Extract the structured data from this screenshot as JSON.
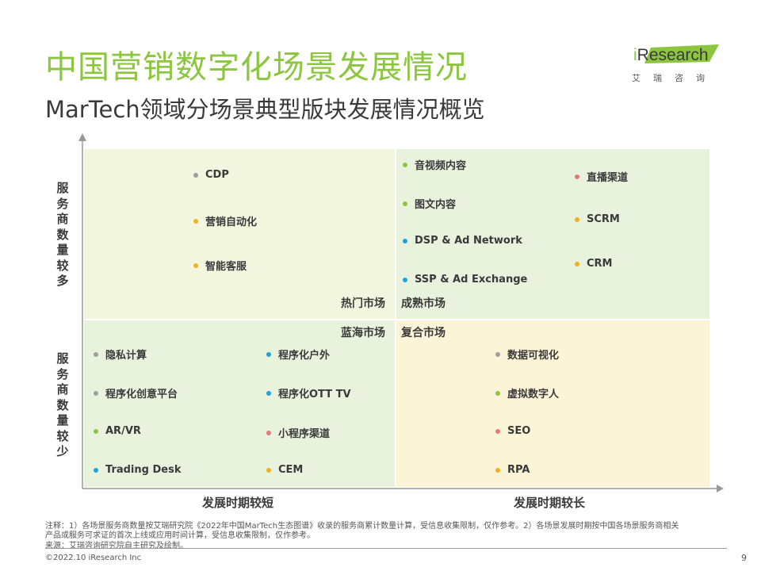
{
  "header": {
    "title": "中国营销数字化场景发展情况",
    "subtitle": "MarTech领域分场景典型版块发展情况概览"
  },
  "logo": {
    "brand_i": "i",
    "brand_rest": "Research",
    "cn": "艾瑞咨询"
  },
  "axes": {
    "y_top": "服务商数量较多",
    "y_bottom": "服务商数量较少",
    "x_left": "发展时期较短",
    "x_right": "发展时期较长"
  },
  "quadrant_labels": {
    "hot": "热门市场",
    "mature": "成熟市场",
    "blue_ocean": "蓝海市场",
    "composite": "复合市场"
  },
  "colors": {
    "gray": "#9e9e9e",
    "orange": "#f2b01e",
    "green": "#8cc63f",
    "red": "#e8797a",
    "blue": "#1ea1dc"
  },
  "quadrants": {
    "top_left": [
      {
        "label": "CDP",
        "color": "gray"
      },
      {
        "label": "营销自动化",
        "color": "orange"
      },
      {
        "label": "智能客服",
        "color": "orange"
      }
    ],
    "top_right_left": [
      {
        "label": "音视频内容",
        "color": "green"
      },
      {
        "label": "图文内容",
        "color": "green"
      },
      {
        "label": "DSP & Ad Network",
        "color": "blue"
      },
      {
        "label": "SSP & Ad Exchange",
        "color": "blue"
      }
    ],
    "top_right_right": [
      {
        "label": "直播渠道",
        "color": "red"
      },
      {
        "label": "SCRM",
        "color": "orange"
      },
      {
        "label": "CRM",
        "color": "orange"
      }
    ],
    "bottom_left_left": [
      {
        "label": "隐私计算",
        "color": "gray"
      },
      {
        "label": "程序化创意平台",
        "color": "gray"
      },
      {
        "label": "AR/VR",
        "color": "green"
      },
      {
        "label": "Trading Desk",
        "color": "blue"
      }
    ],
    "bottom_left_right": [
      {
        "label": "程序化户外",
        "color": "blue"
      },
      {
        "label": "程序化OTT TV",
        "color": "blue"
      },
      {
        "label": "小程序渠道",
        "color": "red"
      },
      {
        "label": "CEM",
        "color": "orange"
      }
    ],
    "bottom_right": [
      {
        "label": "数据可视化",
        "color": "gray"
      },
      {
        "label": "虚拟数字人",
        "color": "green"
      },
      {
        "label": "SEO",
        "color": "red"
      },
      {
        "label": "RPA",
        "color": "orange"
      }
    ]
  },
  "notes": {
    "line1": "注释：1）各场景服务商数量按艾瑞研究院《2022年中国MarTech生态图谱》收录的服务商累计数量计算，受信息收集限制，仅作参考。2）各场景发展时期按中国各场景服务商相关",
    "line2": "产品或服务可求证的首次上线或应用时间计算，受信息收集限制，仅作参考。",
    "source": "来源：艾瑞咨询研究院自主研究及绘制。",
    "copyright": "©2022.10 iResearch Inc",
    "page": "9"
  }
}
